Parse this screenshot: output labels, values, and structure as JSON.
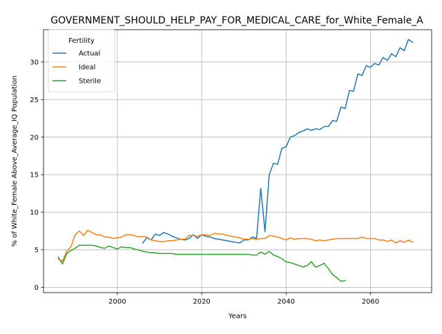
{
  "chart_data": {
    "type": "line",
    "title": "GOVERNMENT_SHOULD_HELP_PAY_FOR_MEDICAL_CARE_for_White_Female_A",
    "xlabel": "Years",
    "ylabel": "% of White_Female Above_Average_IQ Population",
    "xlim": [
      1982.5,
      2074.5
    ],
    "ylim": [
      -0.7,
      34.3
    ],
    "x_ticks": [
      2000,
      2020,
      2040,
      2060
    ],
    "y_ticks": [
      0,
      5,
      10,
      15,
      20,
      25,
      30
    ],
    "grid": true,
    "legend": {
      "title": "Fertility",
      "placement": "top-left"
    },
    "series": [
      {
        "name": "Actual",
        "color": "#1f77b4",
        "x": [
          2006,
          2007,
          2008,
          2009,
          2010,
          2011,
          2012,
          2013,
          2014,
          2015,
          2016,
          2017,
          2018,
          2019,
          2020,
          2021,
          2022,
          2023,
          2024,
          2025,
          2026,
          2027,
          2028,
          2029,
          2030,
          2031,
          2032,
          2033,
          2034,
          2035,
          2036,
          2037,
          2038,
          2039,
          2040,
          2041,
          2042,
          2043,
          2044,
          2045,
          2046,
          2047,
          2048,
          2049,
          2050,
          2051,
          2052,
          2053,
          2054,
          2055,
          2056,
          2057,
          2058,
          2059,
          2060,
          2061,
          2062,
          2063,
          2064,
          2065,
          2066,
          2067,
          2068,
          2069,
          2070
        ],
        "y": [
          5.9,
          6.6,
          6.3,
          7.1,
          6.9,
          7.3,
          7.1,
          6.8,
          6.6,
          6.4,
          6.3,
          6.5,
          7.0,
          6.5,
          7.0,
          6.8,
          6.7,
          6.5,
          6.4,
          6.3,
          6.2,
          6.1,
          6.0,
          5.9,
          6.3,
          6.3,
          6.7,
          6.5,
          13.2,
          7.4,
          15.0,
          16.5,
          16.4,
          18.5,
          18.7,
          20.0,
          20.2,
          20.6,
          20.8,
          21.1,
          20.9,
          21.1,
          21.0,
          21.4,
          21.4,
          22.2,
          22.1,
          24.0,
          23.8,
          26.2,
          26.1,
          28.4,
          28.2,
          29.5,
          29.3,
          29.8,
          29.6,
          30.6,
          30.2,
          31.1,
          30.7,
          31.9,
          31.5,
          33.0,
          32.6
        ]
      },
      {
        "name": "Ideal",
        "color": "#ff7f0e",
        "x": [
          1986,
          1987,
          1988,
          1989,
          1990,
          1991,
          1992,
          1993,
          1994,
          1995,
          1996,
          1997,
          1998,
          1999,
          2000,
          2001,
          2002,
          2003,
          2004,
          2005,
          2006,
          2007,
          2008,
          2009,
          2010,
          2011,
          2012,
          2013,
          2014,
          2015,
          2016,
          2017,
          2018,
          2019,
          2020,
          2021,
          2022,
          2023,
          2024,
          2025,
          2026,
          2027,
          2028,
          2029,
          2030,
          2031,
          2032,
          2033,
          2034,
          2035,
          2036,
          2037,
          2038,
          2039,
          2040,
          2041,
          2042,
          2043,
          2044,
          2045,
          2046,
          2047,
          2048,
          2049,
          2050,
          2051,
          2052,
          2053,
          2054,
          2055,
          2056,
          2057,
          2058,
          2059,
          2060,
          2061,
          2062,
          2063,
          2064,
          2065,
          2066,
          2067,
          2068,
          2069,
          2070
        ],
        "y": [
          3.8,
          3.5,
          4.8,
          5.4,
          7.0,
          7.5,
          6.9,
          7.6,
          7.3,
          7.0,
          7.0,
          6.7,
          6.7,
          6.5,
          6.6,
          6.7,
          7.0,
          7.0,
          6.9,
          6.7,
          6.8,
          6.7,
          6.3,
          6.2,
          6.1,
          6.1,
          6.2,
          6.2,
          6.3,
          6.4,
          6.4,
          6.9,
          6.9,
          6.8,
          7.0,
          7.0,
          6.9,
          7.2,
          7.1,
          7.1,
          6.9,
          6.8,
          6.7,
          6.6,
          6.4,
          6.4,
          6.5,
          6.4,
          6.5,
          6.5,
          6.9,
          6.8,
          6.7,
          6.5,
          6.3,
          6.6,
          6.4,
          6.5,
          6.5,
          6.5,
          6.4,
          6.2,
          6.3,
          6.2,
          6.3,
          6.4,
          6.5,
          6.5,
          6.5,
          6.5,
          6.5,
          6.5,
          6.7,
          6.5,
          6.5,
          6.5,
          6.3,
          6.3,
          6.1,
          6.3,
          5.9,
          6.2,
          6.0,
          6.3,
          6.0
        ]
      },
      {
        "name": "Sterile",
        "color": "#2ca02c",
        "x": [
          1986,
          1987,
          1988,
          1989,
          1990,
          1991,
          1992,
          1993,
          1994,
          1995,
          1996,
          1997,
          1998,
          1999,
          2000,
          2001,
          2002,
          2003,
          2004,
          2005,
          2006,
          2007,
          2008,
          2009,
          2010,
          2011,
          2012,
          2013,
          2014,
          2015,
          2016,
          2017,
          2018,
          2019,
          2020,
          2021,
          2022,
          2023,
          2024,
          2025,
          2026,
          2027,
          2028,
          2029,
          2030,
          2031,
          2032,
          2033,
          2034,
          2035,
          2036,
          2037,
          2038,
          2039,
          2040,
          2041,
          2042,
          2043,
          2044,
          2045,
          2046,
          2047,
          2048,
          2049,
          2050,
          2051,
          2052,
          2053,
          2054
        ],
        "y": [
          4.0,
          3.1,
          4.5,
          4.9,
          5.2,
          5.6,
          5.6,
          5.6,
          5.6,
          5.5,
          5.3,
          5.2,
          5.5,
          5.3,
          5.1,
          5.4,
          5.3,
          5.3,
          5.1,
          5.0,
          4.8,
          4.7,
          4.6,
          4.6,
          4.5,
          4.5,
          4.5,
          4.5,
          4.4,
          4.4,
          4.4,
          4.4,
          4.4,
          4.4,
          4.4,
          4.4,
          4.4,
          4.4,
          4.4,
          4.4,
          4.4,
          4.4,
          4.4,
          4.4,
          4.4,
          4.4,
          4.3,
          4.3,
          4.7,
          4.4,
          4.8,
          4.3,
          4.1,
          3.8,
          3.4,
          3.3,
          3.1,
          2.9,
          2.7,
          2.9,
          3.4,
          2.7,
          2.9,
          3.2,
          2.5,
          1.7,
          1.3,
          0.8,
          0.9
        ]
      }
    ]
  }
}
